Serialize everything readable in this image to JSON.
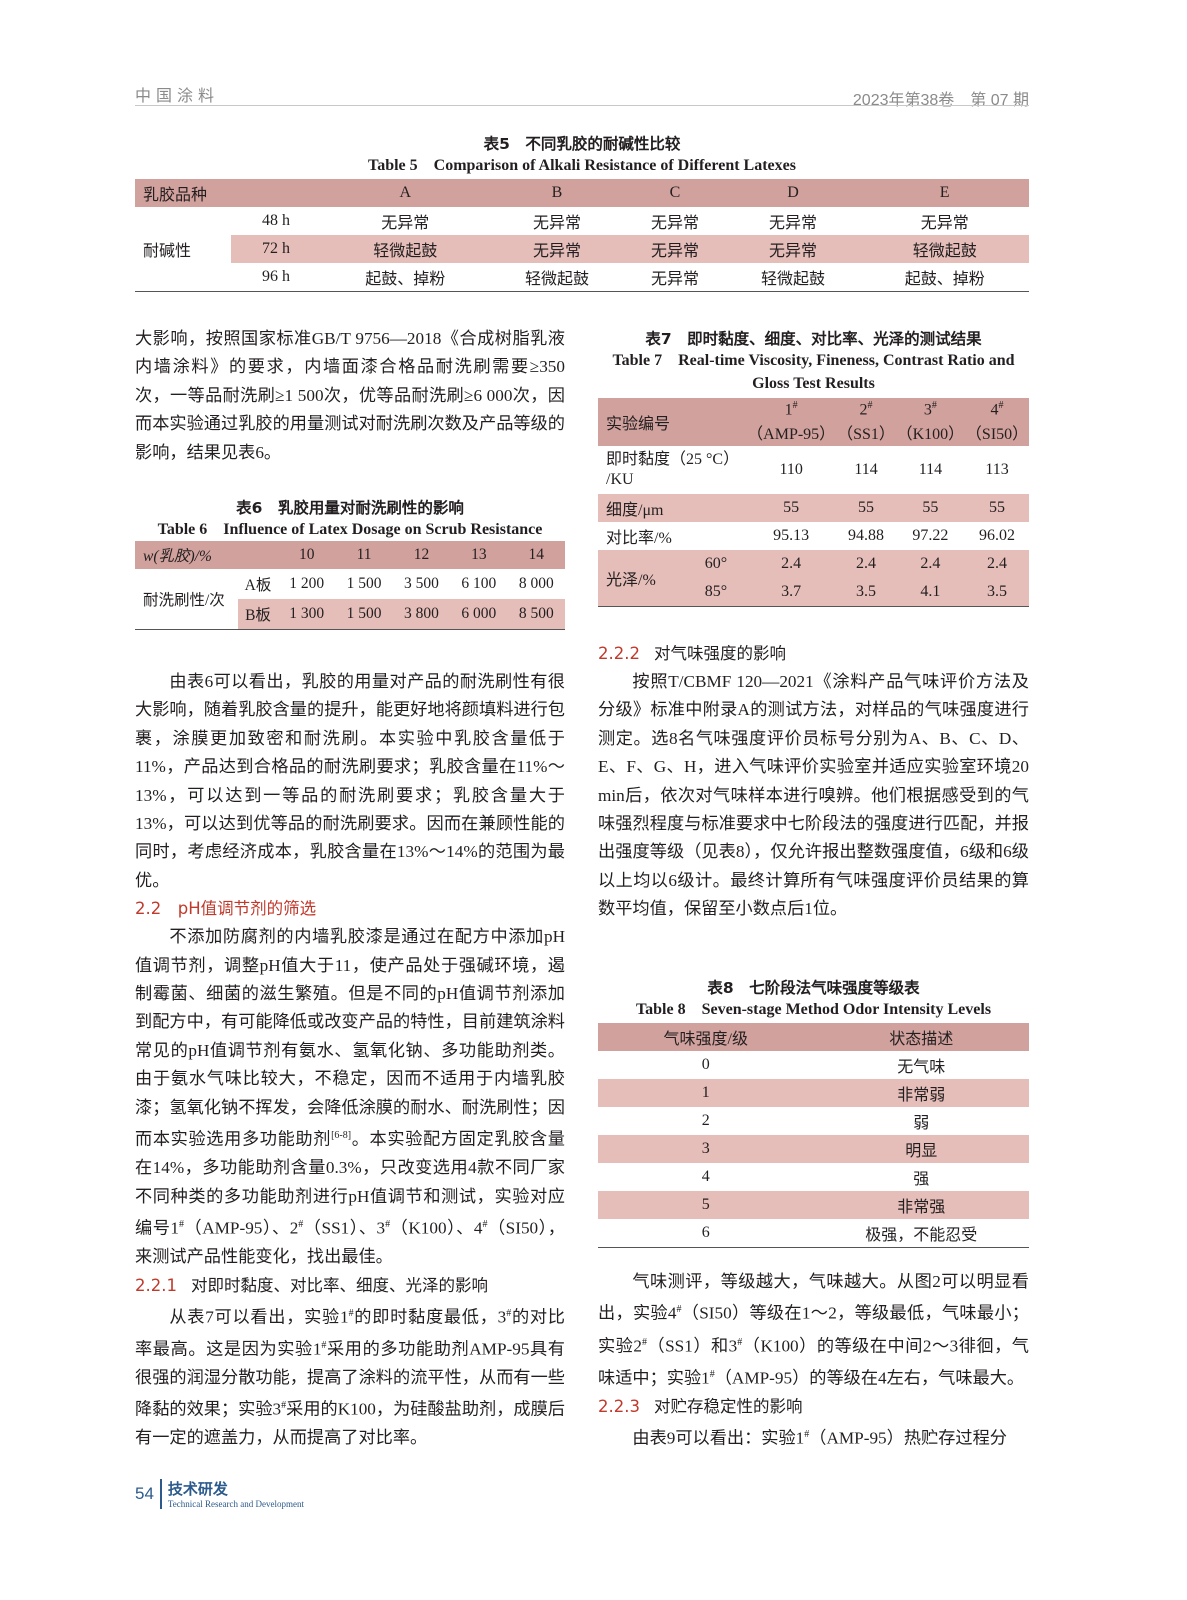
{
  "header": {
    "journal": "中国涂料",
    "issue": "2023年第38卷　第 07 期"
  },
  "table5": {
    "caption_cn": "表5　不同乳胶的耐碱性比较",
    "caption_en": "Table 5　Comparison of Alkali Resistance of Different Latexes",
    "corner": "乳胶品种",
    "columns": [
      "A",
      "B",
      "C",
      "D",
      "E"
    ],
    "group": "耐碱性",
    "rows": [
      {
        "label": "48 h",
        "values": [
          "无异常",
          "无异常",
          "无异常",
          "无异常",
          "无异常"
        ]
      },
      {
        "label": "72 h",
        "values": [
          "轻微起鼓",
          "无异常",
          "无异常",
          "无异常",
          "轻微起鼓"
        ]
      },
      {
        "label": "96 h",
        "values": [
          "起鼓、掉粉",
          "轻微起鼓",
          "无异常",
          "轻微起鼓",
          "起鼓、掉粉"
        ]
      }
    ]
  },
  "left": {
    "p1": "大影响，按照国家标准GB/T 9756—2018《合成树脂乳液内墙涂料》的要求，内墙面漆合格品耐洗刷需要≥350次，一等品耐洗刷≥1 500次，优等品耐洗刷≥6 000次，因而本实验通过乳胶的用量测试对耐洗刷次数及产品等级的影响，结果见表6。",
    "p2": "由表6可以看出，乳胶的用量对产品的耐洗刷性有很大影响，随着乳胶含量的提升，能更好地将颜填料进行包裹，涂膜更加致密和耐洗刷。本实验中乳胶含量低于11%，产品达到合格品的耐洗刷要求；乳胶含量在11%～13%，可以达到一等品的耐洗刷要求；乳胶含量大于13%，可以达到优等品的耐洗刷要求。因而在兼顾性能的同时，考虑经济成本，乳胶含量在13%～14%的范围为最优。",
    "h22": "2.2　pH值调节剂的筛选",
    "p3": "不添加防腐剂的内墙乳胶漆是通过在配方中添加pH值调节剂，调整pH值大于11，使产品处于强碱环境，遏制霉菌、细菌的滋生繁殖。但是不同的pH值调节剂添加到配方中，有可能降低或改变产品的特性，目前建筑涂料常见的pH值调节剂有氨水、氢氧化钠、多功能助剂类。由于氨水气味比较大，不稳定，因而不适用于内墙乳胶漆；氢氧化钠不挥发，会降低涂膜的耐水、耐洗刷性；因而本实验选用多功能助剂[6-8]。本实验配方固定乳胶含量在14%，多功能助剂含量0.3%，只改变选用4款不同厂家不同种类的多功能助剂进行pH值调节和测试，实验对应编号1#（AMP-95）、2#（SS1）、3#（K100）、4#（SI50），来测试产品性能变化，找出最佳。",
    "h221_num": "2.2.1",
    "h221": "对即时黏度、对比率、细度、光泽的影响",
    "p4": "从表7可以看出，实验1#的即时黏度最低，3#的对比率最高。这是因为实验1#采用的多功能助剂AMP-95具有很强的润湿分散功能，提高了涂料的流平性，从而有一些降黏的效果；实验3#采用的K100，为硅酸盐助剂，成膜后有一定的遮盖力，从而提高了对比率。"
  },
  "table6": {
    "caption_cn": "表6　乳胶用量对耐洗刷性的影响",
    "caption_en": "Table 6　Influence of Latex Dosage on Scrub Resistance",
    "corner": "w(乳胶)/%",
    "columns": [
      "10",
      "11",
      "12",
      "13",
      "14"
    ],
    "group": "耐洗刷性/次",
    "rows": [
      {
        "label": "A板",
        "values": [
          "1 200",
          "1 500",
          "3 500",
          "6 100",
          "8 000"
        ]
      },
      {
        "label": "B板",
        "values": [
          "1 300",
          "1 500",
          "3 800",
          "6 000",
          "8 500"
        ]
      }
    ]
  },
  "table7": {
    "caption_cn": "表7　即时黏度、细度、对比率、光泽的测试结果",
    "caption_en_1": "Table 7　Real-time Viscosity, Fineness, Contrast Ratio and",
    "caption_en_2": "Gloss Test Results",
    "corner": "实验编号",
    "columns": [
      {
        "num": "1#",
        "name": "（AMP-95）"
      },
      {
        "num": "2#",
        "name": "（SS1）"
      },
      {
        "num": "3#",
        "name": "（K100）"
      },
      {
        "num": "4#",
        "name": "（SI50）"
      }
    ],
    "viscosity": {
      "label_1": "即时黏度（25 °C）",
      "label_2": "/KU",
      "values": [
        "110",
        "114",
        "114",
        "113"
      ]
    },
    "fineness": {
      "label": "细度/μm",
      "values": [
        "55",
        "55",
        "55",
        "55"
      ]
    },
    "contrast": {
      "label": "对比率/%",
      "values": [
        "95.13",
        "94.88",
        "97.22",
        "96.02"
      ]
    },
    "gloss": {
      "label": "光泽/%",
      "rows": [
        {
          "angle": "60°",
          "values": [
            "2.4",
            "2.4",
            "2.4",
            "2.4"
          ]
        },
        {
          "angle": "85°",
          "values": [
            "3.7",
            "3.5",
            "4.1",
            "3.5"
          ]
        }
      ]
    }
  },
  "right": {
    "h222_num": "2.2.2",
    "h222": "对气味强度的影响",
    "p1": "按照T/CBMF 120—2021《涂料产品气味评价方法及分级》标准中附录A的测试方法，对样品的气味强度进行测定。选8名气味强度评价员标号分别为A、B、C、D、E、F、G、H，进入气味评价实验室并适应实验室环境20 min后，依次对气味样本进行嗅辨。他们根据感受到的气味强烈程度与标准要求中七阶段法的强度进行匹配，并报出强度等级（见表8），仅允许报出整数强度值，6级和6级以上均以6级计。最终计算所有气味强度评价员结果的算数平均值，保留至小数点后1位。",
    "p2": "气味测评，等级越大，气味越大。从图2可以明显看出，实验4#（SI50）等级在1～2，等级最低，气味最小；实验2#（SS1）和3#（K100）的等级在中间2～3徘徊，气味适中；实验1#（AMP-95）的等级在4左右，气味最大。",
    "h223_num": "2.2.3",
    "h223": "对贮存稳定性的影响",
    "p3": "由表9可以看出：实验1#（AMP-95）热贮存过程分"
  },
  "table8": {
    "caption_cn": "表8　七阶段法气味强度等级表",
    "caption_en": "Table 8　Seven-stage Method Odor Intensity Levels",
    "headers": [
      "气味强度/级",
      "状态描述"
    ],
    "rows": [
      [
        "0",
        "无气味"
      ],
      [
        "1",
        "非常弱"
      ],
      [
        "2",
        "弱"
      ],
      [
        "3",
        "明显"
      ],
      [
        "4",
        "强"
      ],
      [
        "5",
        "非常强"
      ],
      [
        "6",
        "极强，不能忍受"
      ]
    ]
  },
  "footer": {
    "page": "54",
    "section_cn": "技术研发",
    "section_en": "Technical Research and Development"
  },
  "colors": {
    "header_row": "#d1a19d",
    "shaded_row": "#e5bdb9",
    "heading": "#c0392b",
    "footer_blue": "#2c5a8c"
  }
}
